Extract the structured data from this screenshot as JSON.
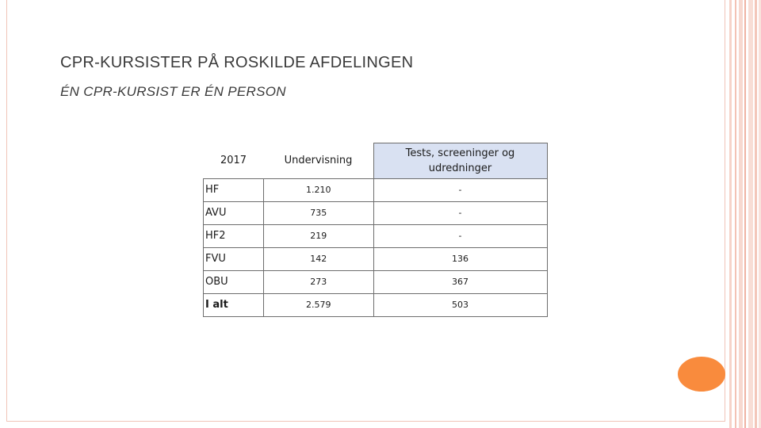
{
  "slide": {
    "title": "CPR-KURSISTER PÅ ROSKILDE AFDELINGEN",
    "subtitle": "ÉN CPR-KURSIST ER ÉN PERSON"
  },
  "table": {
    "header": {
      "year": "2017",
      "col1": "Undervisning",
      "col2": "Tests, screeninger og udredninger"
    },
    "rows": [
      {
        "label": "HF",
        "col1": "1.210",
        "col2": "-"
      },
      {
        "label": "AVU",
        "col1": "735",
        "col2": "-"
      },
      {
        "label": "HF2",
        "col1": "219",
        "col2": "-"
      },
      {
        "label": "FVU",
        "col1": "142",
        "col2": "136"
      },
      {
        "label": "OBU",
        "col1": "273",
        "col2": "367"
      },
      {
        "label": "I alt",
        "col1": "2.579",
        "col2": "503"
      }
    ]
  },
  "colors": {
    "accent_orange": "#f98b3d",
    "header_fill": "#d9e1f2",
    "frame_line": "#f0c4b8"
  }
}
